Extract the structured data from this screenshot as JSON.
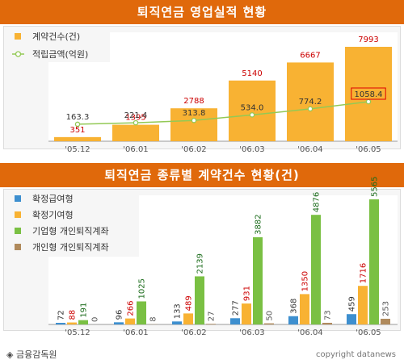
{
  "chart_data": [
    {
      "type": "bar",
      "title": "퇴직연금 영업실적 현황",
      "categories": [
        "'05.12",
        "'06.01",
        "'06.02",
        "'06.03",
        "'06.04",
        "'06.05"
      ],
      "series": [
        {
          "name": "계약건수(건)",
          "kind": "bar",
          "values": [
            351,
            1395,
            2788,
            5140,
            6667,
            7993
          ]
        },
        {
          "name": "적립금액(억원)",
          "kind": "line",
          "values": [
            "163.3",
            "221.4",
            "313.8",
            "534.0",
            "774.2",
            "1058.4"
          ]
        }
      ],
      "legend": "top-left",
      "colors": {
        "bar": "#f8b233",
        "line": "#93c955",
        "bar_label": "#cc0000",
        "line_label": "#333333",
        "highlight_box": "#dd0000"
      }
    },
    {
      "type": "bar",
      "title": "퇴직연금 종류별 계약건수 현황(건)",
      "categories": [
        "'05.12",
        "'06.01",
        "'06.02",
        "'06.03",
        "'06.04",
        "'06.05"
      ],
      "series": [
        {
          "name": "확정급여형",
          "color": "#3d8fcf",
          "label_color": "#333333",
          "values": [
            72,
            96,
            133,
            277,
            368,
            459
          ]
        },
        {
          "name": "확정기여형",
          "color": "#f8b233",
          "label_color": "#cc0000",
          "values": [
            88,
            266,
            489,
            931,
            1350,
            1716
          ]
        },
        {
          "name": "기업형 개인퇴직계좌",
          "color": "#7ac043",
          "label_color": "#1a6b1a",
          "values": [
            191,
            1025,
            2139,
            3882,
            4876,
            5565
          ]
        },
        {
          "name": "개인형 개인퇴직계좌",
          "color": "#b08a5c",
          "label_color": "#555555",
          "values": [
            0,
            8,
            27,
            50,
            73,
            253
          ]
        }
      ],
      "legend": "top-left"
    }
  ],
  "footer": {
    "source": "◈ 금융감독원",
    "copyright": "copyright datanews"
  }
}
